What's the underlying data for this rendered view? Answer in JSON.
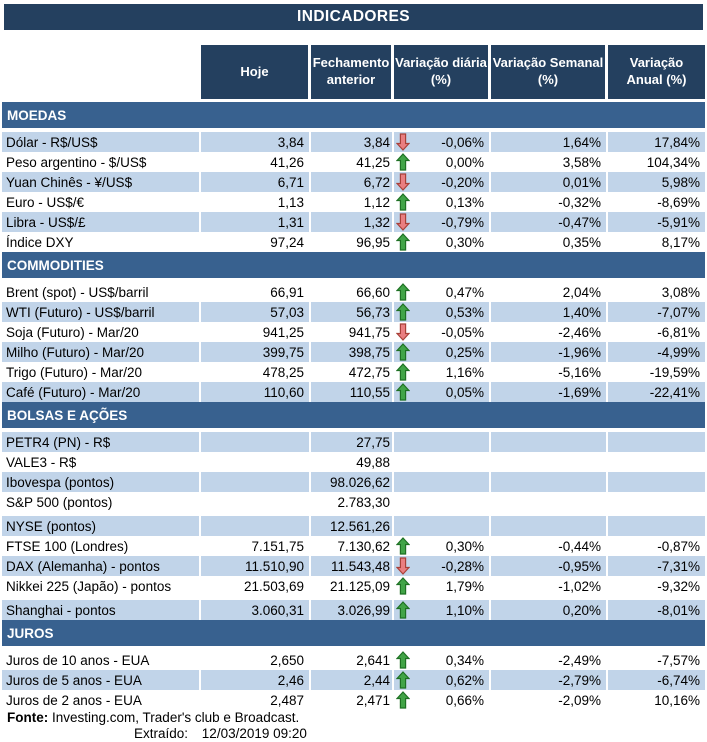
{
  "colors": {
    "navy": "#24405F",
    "section_blue": "#38618F",
    "stripe_blue": "#C1D4E9",
    "arrow_up_fill": "#41A447",
    "arrow_up_stroke": "#1E7023",
    "arrow_down_fill": "#E97E80",
    "arrow_down_stroke": "#A84038"
  },
  "icons": {
    "up_arrow": "block-arrow-up",
    "down_arrow": "block-arrow-down"
  },
  "chart_data": {
    "type": "table",
    "title": "INDICADORES",
    "columns": [
      "Hoje",
      "Fechamento\nanterior",
      "Variação diária\n(%)",
      "Variação Semanal\n(%)",
      "Variação\nAnual (%)"
    ],
    "sections": [
      {
        "name": "MOEDAS",
        "rows": [
          {
            "label": "Dólar - R$/US$",
            "hoje": "3,84",
            "fechamento": "3,84",
            "arrow": "down",
            "daily": "-0,06%",
            "weekly": "1,64%",
            "annual": "17,84%",
            "stripe": "blue"
          },
          {
            "label": "Peso argentino - $/US$",
            "hoje": "41,26",
            "fechamento": "41,25",
            "arrow": "up",
            "daily": "0,00%",
            "weekly": "3,58%",
            "annual": "104,34%",
            "stripe": "white"
          },
          {
            "label": "Yuan Chinês - ¥/US$",
            "hoje": "6,71",
            "fechamento": "6,72",
            "arrow": "down",
            "daily": "-0,20%",
            "weekly": "0,01%",
            "annual": "5,98%",
            "stripe": "blue"
          },
          {
            "label": "Euro - US$/€",
            "hoje": "1,13",
            "fechamento": "1,12",
            "arrow": "up",
            "daily": "0,13%",
            "weekly": "-0,32%",
            "annual": "-8,69%",
            "stripe": "white"
          },
          {
            "label": "Libra - US$/£",
            "hoje": "1,31",
            "fechamento": "1,32",
            "arrow": "down",
            "daily": "-0,79%",
            "weekly": "-0,47%",
            "annual": "-5,91%",
            "stripe": "blue"
          },
          {
            "label": "Índice DXY",
            "hoje": "97,24",
            "fechamento": "96,95",
            "arrow": "up",
            "daily": "0,30%",
            "weekly": "0,35%",
            "annual": "8,17%",
            "stripe": "white"
          }
        ]
      },
      {
        "name": "COMMODITIES",
        "rows": [
          {
            "label": "Brent (spot) - US$/barril",
            "hoje": "66,91",
            "fechamento": "66,60",
            "arrow": "up",
            "daily": "0,47%",
            "weekly": "2,04%",
            "annual": "3,08%",
            "stripe": "white"
          },
          {
            "label": "WTI (Futuro) - US$/barril",
            "hoje": "57,03",
            "fechamento": "56,73",
            "arrow": "up",
            "daily": "0,53%",
            "weekly": "1,40%",
            "annual": "-7,07%",
            "stripe": "blue"
          },
          {
            "label": "Soja (Futuro) - Mar/20",
            "hoje": "941,25",
            "fechamento": "941,75",
            "arrow": "down",
            "daily": "-0,05%",
            "weekly": "-2,46%",
            "annual": "-6,81%",
            "stripe": "white"
          },
          {
            "label": "Milho (Futuro) - Mar/20",
            "hoje": "399,75",
            "fechamento": "398,75",
            "arrow": "up",
            "daily": "0,25%",
            "weekly": "-1,96%",
            "annual": "-4,99%",
            "stripe": "blue"
          },
          {
            "label": "Trigo (Futuro) - Mar/20",
            "hoje": "478,25",
            "fechamento": "472,75",
            "arrow": "up",
            "daily": "1,16%",
            "weekly": "-5,16%",
            "annual": "-19,59%",
            "stripe": "white"
          },
          {
            "label": "Café (Futuro) - Mar/20",
            "hoje": "110,60",
            "fechamento": "110,55",
            "arrow": "up",
            "daily": "0,05%",
            "weekly": "-1,69%",
            "annual": "-22,41%",
            "stripe": "blue"
          }
        ]
      },
      {
        "name": "BOLSAS E AÇÕES",
        "rows": [
          {
            "label": "PETR4 (PN) - R$",
            "hoje": "",
            "fechamento": "27,75",
            "arrow": "",
            "daily": "",
            "weekly": "",
            "annual": "",
            "stripe": "blue"
          },
          {
            "label": "VALE3 - R$",
            "hoje": "",
            "fechamento": "49,88",
            "arrow": "",
            "daily": "",
            "weekly": "",
            "annual": "",
            "stripe": "white"
          },
          {
            "label": "Ibovespa (pontos)",
            "hoje": "",
            "fechamento": "98.026,62",
            "arrow": "",
            "daily": "",
            "weekly": "",
            "annual": "",
            "stripe": "blue"
          },
          {
            "label": "S&P 500 (pontos)",
            "hoje": "",
            "fechamento": "2.783,30",
            "arrow": "",
            "daily": "",
            "weekly": "",
            "annual": "",
            "stripe": "white"
          },
          {
            "label": "NYSE (pontos)",
            "hoje": "",
            "fechamento": "12.561,26",
            "arrow": "",
            "daily": "",
            "weekly": "",
            "annual": "",
            "stripe": "blue",
            "gap_before": true
          },
          {
            "label": "FTSE 100 (Londres)",
            "hoje": "7.151,75",
            "fechamento": "7.130,62",
            "arrow": "up",
            "daily": "0,30%",
            "weekly": "-0,44%",
            "annual": "-0,87%",
            "stripe": "white"
          },
          {
            "label": "DAX (Alemanha) - pontos",
            "hoje": "11.510,90",
            "fechamento": "11.543,48",
            "arrow": "down",
            "daily": "-0,28%",
            "weekly": "-0,95%",
            "annual": "-7,31%",
            "stripe": "blue"
          },
          {
            "label": "Nikkei 225 (Japão) - pontos",
            "hoje": "21.503,69",
            "fechamento": "21.125,09",
            "arrow": "up",
            "daily": "1,79%",
            "weekly": "-1,02%",
            "annual": "-9,32%",
            "stripe": "white"
          },
          {
            "label": "Shanghai - pontos",
            "hoje": "3.060,31",
            "fechamento": "3.026,99",
            "arrow": "up",
            "daily": "1,10%",
            "weekly": "0,20%",
            "annual": "-8,01%",
            "stripe": "blue",
            "gap_before": true
          }
        ]
      },
      {
        "name": "JUROS",
        "rows": [
          {
            "label": "Juros de 10 anos - EUA",
            "hoje": "2,650",
            "fechamento": "2,641",
            "arrow": "up",
            "daily": "0,34%",
            "weekly": "-2,49%",
            "annual": "-7,57%",
            "stripe": "white"
          },
          {
            "label": "Juros de 5 anos - EUA",
            "hoje": "2,46",
            "fechamento": "2,44",
            "arrow": "up",
            "daily": "0,62%",
            "weekly": "-2,79%",
            "annual": "-6,74%",
            "stripe": "blue"
          },
          {
            "label": "Juros de 2 anos - EUA",
            "hoje": "2,487",
            "fechamento": "2,471",
            "arrow": "up",
            "daily": "0,66%",
            "weekly": "-2,09%",
            "annual": "10,16%",
            "stripe": "white"
          }
        ]
      }
    ],
    "footer": {
      "source_label": "Fonte:",
      "source_text": "Investing.com, Trader's club e Broadcast.",
      "extracted_label": "Extraído:",
      "extracted_value": "12/03/2019 09:20"
    }
  }
}
